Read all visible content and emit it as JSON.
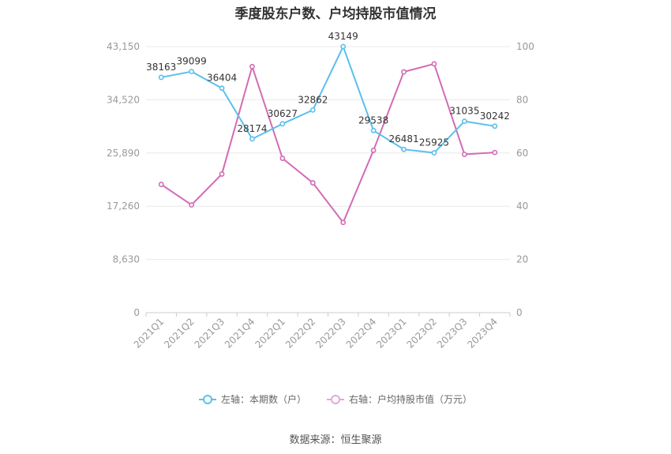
{
  "chart_data": {
    "type": "line",
    "title": "季度股东户数、户均持股市值情况",
    "categories": [
      "2021Q1",
      "2021Q2",
      "2021Q3",
      "2021Q4",
      "2022Q1",
      "2022Q2",
      "2022Q3",
      "2022Q4",
      "2023Q1",
      "2023Q2",
      "2023Q3",
      "2023Q4"
    ],
    "left_axis": {
      "min": 0,
      "max": 43150,
      "ticks": [
        "0",
        "8,630",
        "17,260",
        "25,890",
        "34,520",
        "43,150"
      ]
    },
    "right_axis": {
      "min": 0,
      "max": 100,
      "ticks": [
        "0",
        "20",
        "40",
        "60",
        "80",
        "100"
      ]
    },
    "series": [
      {
        "name": "左轴：本期数（户）",
        "axis": "left",
        "color": "#5bc0eb",
        "values": [
          38163,
          39099,
          36404,
          28174,
          30627,
          32862,
          43149,
          29538,
          26481,
          25925,
          31035,
          30242
        ],
        "labels": [
          "38163",
          "39099",
          "36404",
          "28174",
          "30627",
          "32862",
          "43149",
          "29538",
          "26481",
          "25925",
          "31035",
          "30242"
        ]
      },
      {
        "name": "右轴：户均持股市值（万元）",
        "axis": "right",
        "color": "#d36bb4",
        "values": [
          48.2,
          40.5,
          52.1,
          92.5,
          58.0,
          48.8,
          33.9,
          61.0,
          90.5,
          93.5,
          59.5,
          60.2
        ]
      }
    ],
    "grid": true,
    "legend_position": "bottom-center"
  },
  "source_text": "数据来源：恒生聚源"
}
